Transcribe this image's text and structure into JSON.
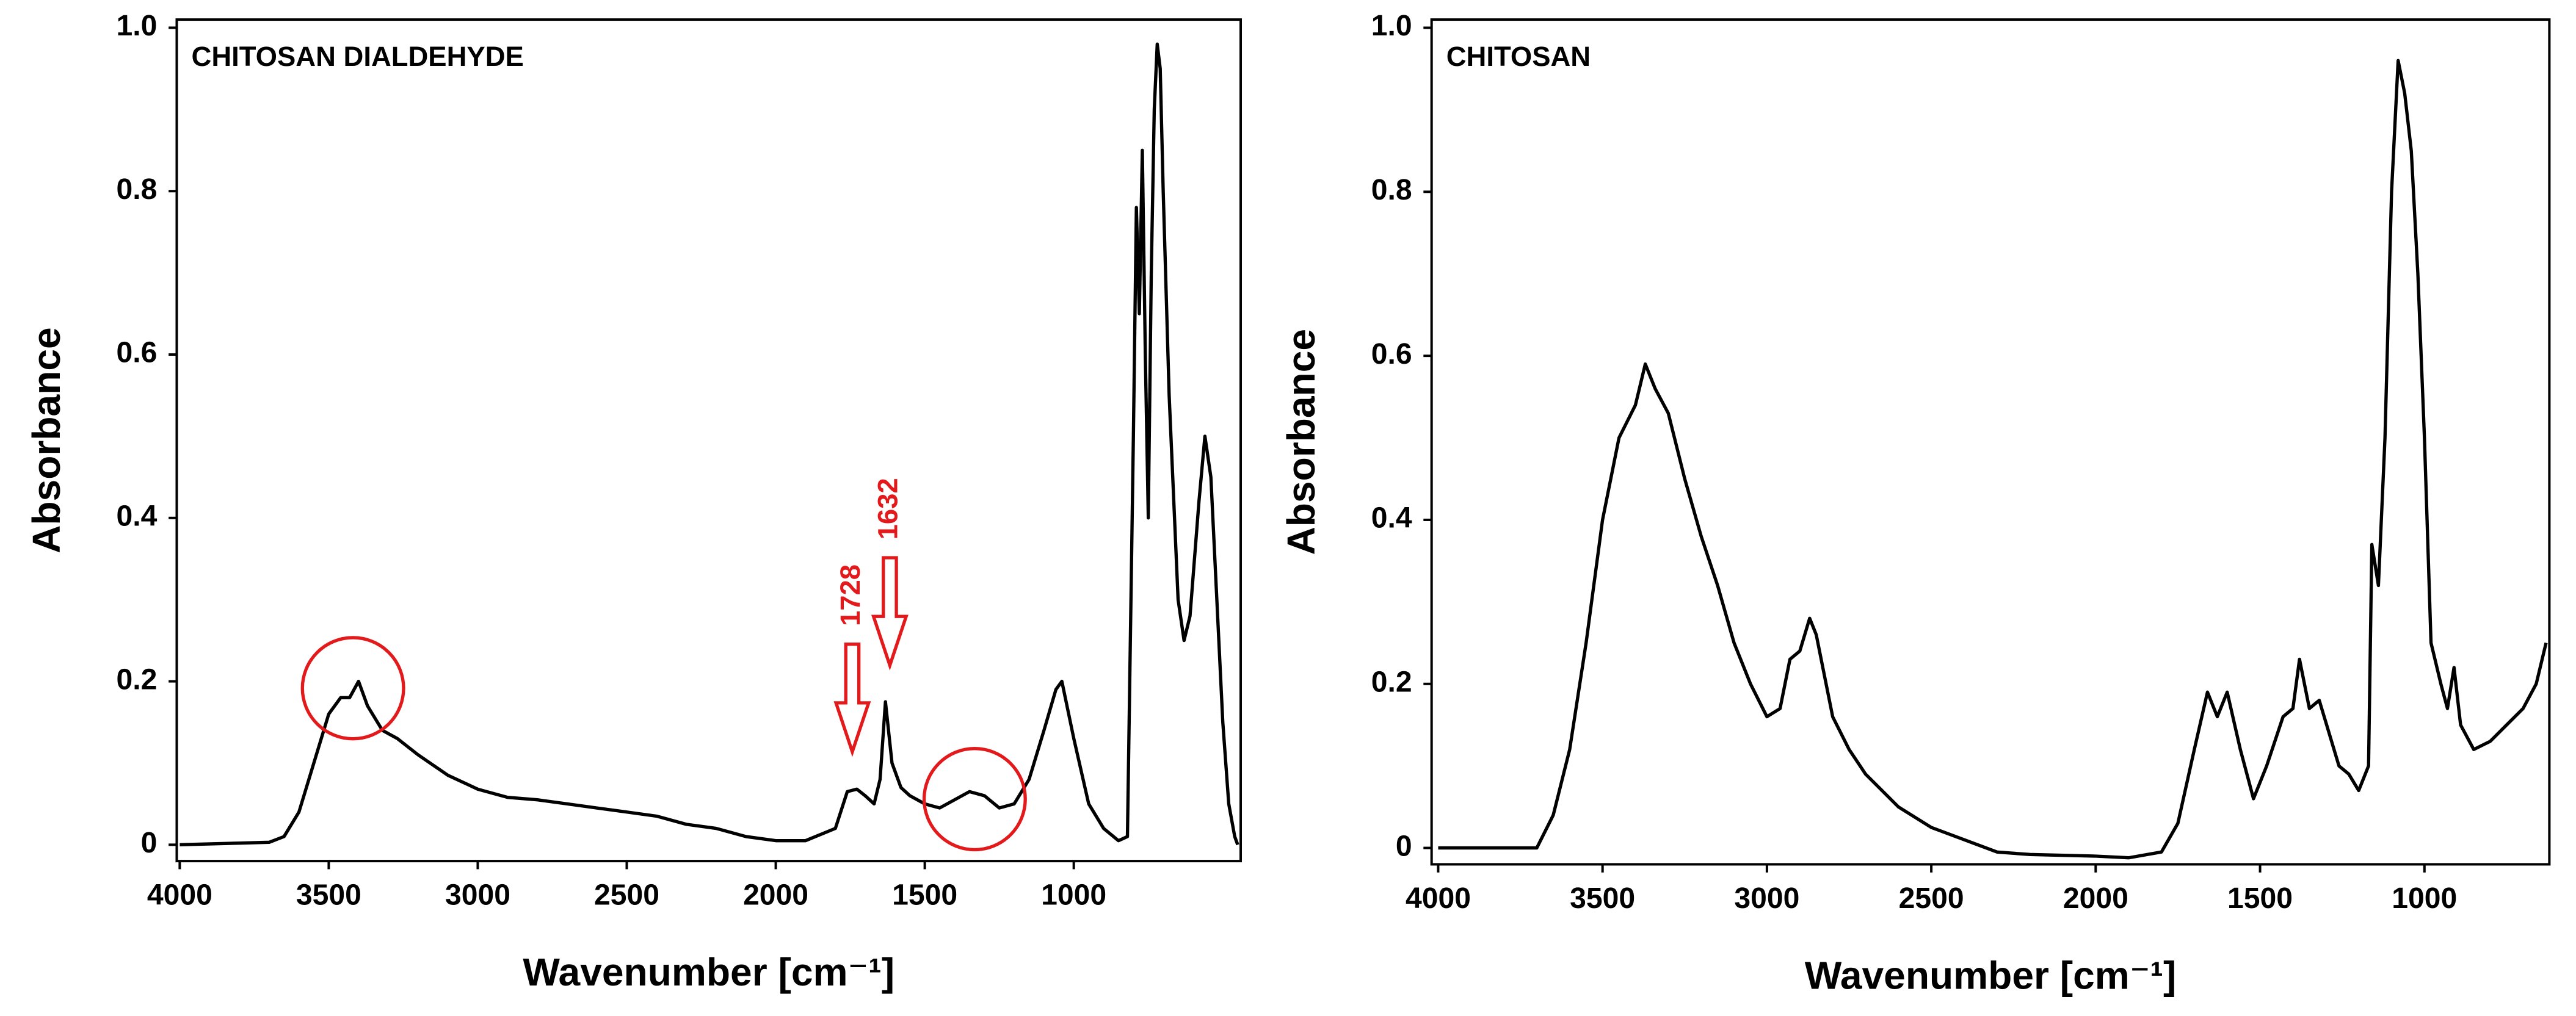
{
  "chart_data": [
    {
      "type": "line",
      "title": "CHITOSAN DIALDEHYDE",
      "ylabel": "Absorbance",
      "xlabel": "Wavenumber [cm⁻¹]",
      "color": "#000000",
      "xlim": [
        4010,
        440
      ],
      "ylim": [
        -0.02,
        1.01
      ],
      "xticks": [
        4000,
        3500,
        3000,
        2500,
        2000,
        1500,
        1000
      ],
      "yticks": [
        0,
        0.2,
        0.4,
        0.6,
        0.8,
        {
          "value": 1.0,
          "label": "1.0"
        }
      ],
      "annotations": [
        "1728",
        "1632"
      ],
      "x": [
        4000,
        3800,
        3700,
        3650,
        3600,
        3550,
        3500,
        3460,
        3430,
        3400,
        3370,
        3320,
        3270,
        3200,
        3100,
        3000,
        2900,
        2800,
        2700,
        2600,
        2500,
        2400,
        2300,
        2200,
        2100,
        2000,
        1900,
        1800,
        1760,
        1728,
        1700,
        1670,
        1650,
        1632,
        1610,
        1580,
        1550,
        1500,
        1450,
        1400,
        1350,
        1300,
        1250,
        1200,
        1150,
        1100,
        1060,
        1040,
        1000,
        950,
        900,
        850,
        820,
        800,
        790,
        780,
        770,
        760,
        750,
        740,
        730,
        720,
        710,
        700,
        680,
        650,
        630,
        610,
        580,
        560,
        540,
        520,
        500,
        480,
        460,
        450
      ],
      "values": [
        0.0,
        0.002,
        0.003,
        0.01,
        0.04,
        0.1,
        0.16,
        0.18,
        0.18,
        0.2,
        0.17,
        0.14,
        0.13,
        0.11,
        0.085,
        0.068,
        0.058,
        0.055,
        0.05,
        0.045,
        0.04,
        0.035,
        0.025,
        0.02,
        0.01,
        0.005,
        0.005,
        0.02,
        0.065,
        0.068,
        0.06,
        0.05,
        0.08,
        0.175,
        0.1,
        0.07,
        0.06,
        0.05,
        0.045,
        0.055,
        0.065,
        0.06,
        0.045,
        0.05,
        0.08,
        0.14,
        0.19,
        0.2,
        0.13,
        0.05,
        0.02,
        0.005,
        0.01,
        0.5,
        0.78,
        0.65,
        0.85,
        0.6,
        0.4,
        0.7,
        0.9,
        0.98,
        0.95,
        0.8,
        0.55,
        0.3,
        0.25,
        0.28,
        0.42,
        0.5,
        0.45,
        0.3,
        0.15,
        0.05,
        0.01,
        0.0
      ]
    },
    {
      "type": "line",
      "title": "CHITOSAN",
      "ylabel": "Absorbance",
      "xlabel": "Wavenumber [cm⁻¹]",
      "color": "#000000",
      "xlim": [
        4020,
        620
      ],
      "ylim": [
        -0.02,
        1.01
      ],
      "xticks": [
        4000,
        3500,
        3000,
        2500,
        2000,
        1500,
        1000
      ],
      "yticks": [
        0,
        0.2,
        0.4,
        0.6,
        0.8,
        {
          "value": 1.0,
          "label": "1.0"
        }
      ],
      "x": [
        4000,
        3700,
        3650,
        3600,
        3550,
        3500,
        3450,
        3400,
        3370,
        3340,
        3300,
        3250,
        3200,
        3150,
        3100,
        3050,
        3000,
        2960,
        2930,
        2900,
        2870,
        2850,
        2800,
        2750,
        2700,
        2600,
        2500,
        2400,
        2300,
        2200,
        2000,
        1900,
        1800,
        1750,
        1700,
        1660,
        1630,
        1600,
        1560,
        1520,
        1480,
        1430,
        1400,
        1380,
        1350,
        1320,
        1290,
        1260,
        1230,
        1200,
        1170,
        1160,
        1140,
        1120,
        1100,
        1080,
        1060,
        1040,
        1020,
        1000,
        980,
        950,
        930,
        910,
        890,
        850,
        800,
        750,
        700,
        660,
        630
      ],
      "values": [
        0.0,
        0.0,
        0.04,
        0.12,
        0.25,
        0.4,
        0.5,
        0.54,
        0.59,
        0.56,
        0.53,
        0.45,
        0.38,
        0.32,
        0.25,
        0.2,
        0.16,
        0.17,
        0.23,
        0.24,
        0.28,
        0.26,
        0.16,
        0.12,
        0.09,
        0.05,
        0.025,
        0.01,
        -0.005,
        -0.008,
        -0.01,
        -0.012,
        -0.005,
        0.03,
        0.12,
        0.19,
        0.16,
        0.19,
        0.12,
        0.06,
        0.1,
        0.16,
        0.17,
        0.23,
        0.17,
        0.18,
        0.14,
        0.1,
        0.09,
        0.07,
        0.1,
        0.37,
        0.32,
        0.5,
        0.8,
        0.96,
        0.92,
        0.85,
        0.7,
        0.5,
        0.25,
        0.2,
        0.17,
        0.22,
        0.15,
        0.12,
        0.13,
        0.15,
        0.17,
        0.2,
        0.25
      ]
    }
  ]
}
